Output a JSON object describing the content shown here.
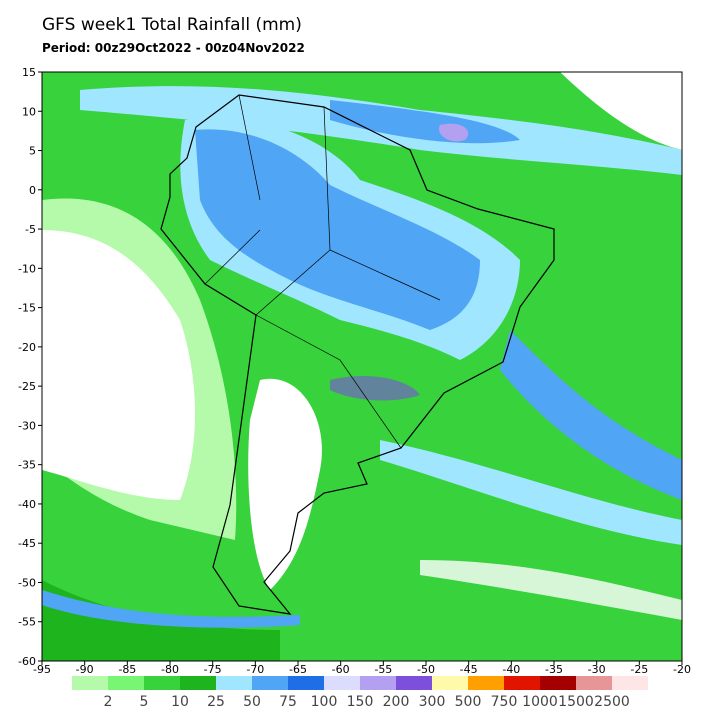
{
  "title": "GFS week1 Total Rainfall (mm)",
  "subtitle": "Period: 00z29Oct2022 - 00z04Nov2022",
  "map": {
    "lon_ticks": [
      -95,
      -90,
      -85,
      -80,
      -75,
      -70,
      -65,
      -60,
      -55,
      -50,
      -45,
      -40,
      -35,
      -30,
      -25,
      -20
    ],
    "lat_ticks": [
      15,
      10,
      5,
      0,
      -5,
      -10,
      -15,
      -20,
      -25,
      -30,
      -35,
      -40,
      -45,
      -50,
      -55,
      -60
    ],
    "lonlim": [
      -95,
      -20
    ],
    "latlim": [
      -60,
      15
    ]
  },
  "colorbar": {
    "levels": [
      2,
      5,
      10,
      25,
      50,
      75,
      100,
      150,
      200,
      300,
      500,
      750,
      1000,
      1500,
      2500
    ],
    "colors": [
      "#b4faaa",
      "#78f573",
      "#37d23c",
      "#1eb41e",
      "#a0e6ff",
      "#50a5f5",
      "#1e6ee6",
      "#dcdcff",
      "#b4a0f0",
      "#7d50dc",
      "#fffaaa",
      "#ffa000",
      "#e11400",
      "#a50000",
      "#e69696",
      "#ffe6e6"
    ]
  }
}
